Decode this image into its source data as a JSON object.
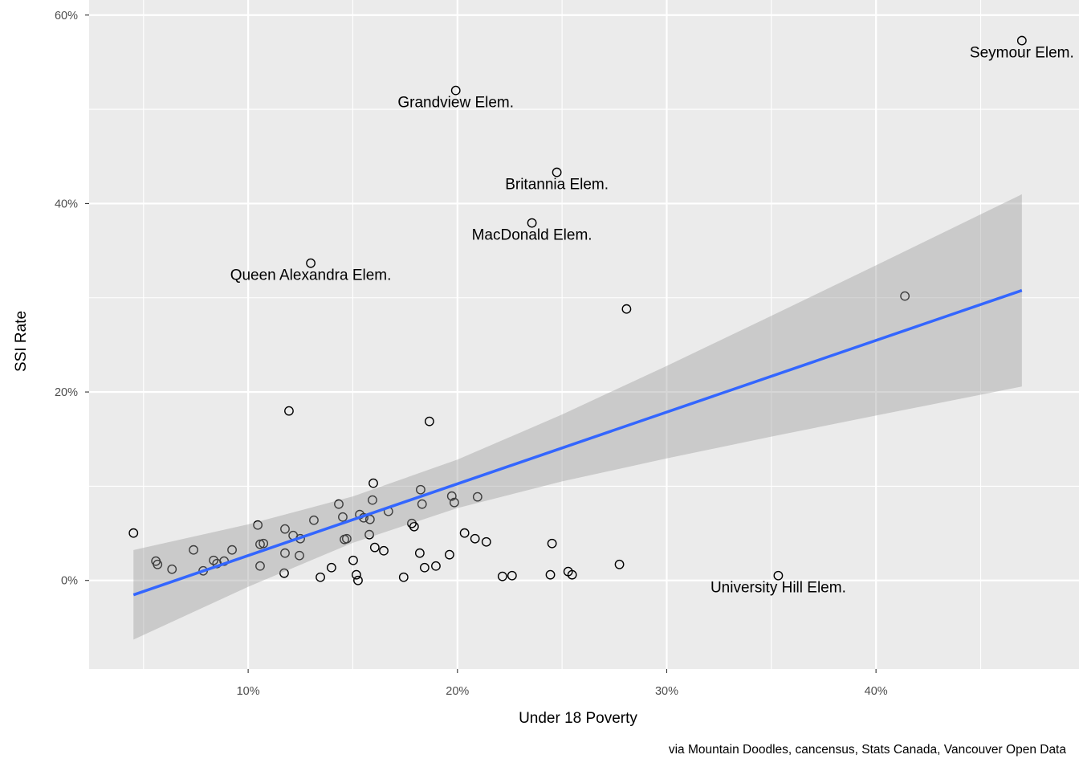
{
  "chart_data": {
    "type": "scatter",
    "title": "",
    "xlabel": "Under 18 Poverty",
    "ylabel": "SSI Rate",
    "caption": "via Mountain Doodles, cancensus, Stats Canada, Vancouver Open Data",
    "xlim": [
      2.4,
      49.7
    ],
    "ylim": [
      -9.4,
      61.6
    ],
    "x_ticks": [
      10,
      20,
      30,
      40
    ],
    "x_tick_labels": [
      "10%",
      "20%",
      "30%",
      "40%"
    ],
    "y_ticks": [
      0,
      20,
      40,
      60
    ],
    "y_tick_labels": [
      "0%",
      "20%",
      "40%",
      "60%"
    ],
    "grid": true,
    "colors": {
      "panel": "#EBEBEB",
      "line": "#3366FF",
      "band": "#999999",
      "grid": "#FFFFFF"
    },
    "points": [
      [
        4.52,
        5.03
      ],
      [
        5.59,
        2.05
      ],
      [
        5.67,
        1.7
      ],
      [
        6.36,
        1.19
      ],
      [
        7.39,
        3.24
      ],
      [
        7.85,
        1.02
      ],
      [
        8.35,
        2.13
      ],
      [
        8.51,
        1.79
      ],
      [
        8.85,
        2.05
      ],
      [
        9.23,
        3.24
      ],
      [
        10.46,
        5.88
      ],
      [
        10.57,
        3.84
      ],
      [
        10.73,
        3.92
      ],
      [
        10.57,
        1.53
      ],
      [
        11.76,
        5.46
      ],
      [
        11.76,
        2.9
      ],
      [
        11.72,
        0.77
      ],
      [
        11.95,
        17.99
      ],
      [
        12.15,
        4.77
      ],
      [
        12.45,
        2.64
      ],
      [
        12.49,
        4.43
      ],
      [
        12.99,
        33.67
      ],
      [
        13.14,
        6.39
      ],
      [
        13.45,
        0.34
      ],
      [
        13.98,
        1.36
      ],
      [
        14.33,
        8.1
      ],
      [
        14.52,
        6.73
      ],
      [
        14.6,
        4.35
      ],
      [
        14.71,
        4.43
      ],
      [
        15.02,
        2.13
      ],
      [
        15.17,
        0.6
      ],
      [
        15.25,
        0.0
      ],
      [
        15.33,
        6.99
      ],
      [
        15.52,
        6.65
      ],
      [
        15.79,
        4.86
      ],
      [
        15.82,
        6.48
      ],
      [
        15.94,
        8.53
      ],
      [
        15.98,
        10.32
      ],
      [
        16.05,
        3.5
      ],
      [
        16.48,
        3.15
      ],
      [
        16.7,
        7.33
      ],
      [
        17.43,
        0.34
      ],
      [
        17.82,
        6.05
      ],
      [
        17.93,
        5.71
      ],
      [
        18.2,
        2.9
      ],
      [
        18.24,
        9.63
      ],
      [
        18.31,
        8.1
      ],
      [
        18.43,
        1.36
      ],
      [
        18.66,
        16.88
      ],
      [
        18.97,
        1.53
      ],
      [
        19.62,
        2.73
      ],
      [
        19.73,
        8.95
      ],
      [
        19.85,
        8.27
      ],
      [
        19.92,
        52.0
      ],
      [
        20.34,
        5.03
      ],
      [
        20.84,
        4.43
      ],
      [
        20.96,
        8.87
      ],
      [
        21.38,
        4.09
      ],
      [
        22.15,
        0.43
      ],
      [
        22.61,
        0.51
      ],
      [
        23.56,
        37.94
      ],
      [
        24.44,
        0.6
      ],
      [
        24.52,
        3.92
      ],
      [
        24.75,
        43.31
      ],
      [
        25.29,
        0.94
      ],
      [
        25.48,
        0.6
      ],
      [
        27.74,
        1.7
      ],
      [
        28.08,
        28.81
      ],
      [
        35.33,
        0.51
      ],
      [
        41.38,
        30.18
      ],
      [
        46.97,
        57.29
      ]
    ],
    "labels": [
      {
        "text": "Seymour Elem.",
        "x": 46.97,
        "y": 57.29
      },
      {
        "text": "Grandview Elem.",
        "x": 19.92,
        "y": 52.0
      },
      {
        "text": "Britannia Elem.",
        "x": 24.75,
        "y": 43.31
      },
      {
        "text": "MacDonald Elem.",
        "x": 23.56,
        "y": 37.94
      },
      {
        "text": "Queen Alexandra Elem.",
        "x": 12.99,
        "y": 33.67
      },
      {
        "text": "University Hill Elem.",
        "x": 35.33,
        "y": 0.51
      }
    ],
    "fit": {
      "method": "lm",
      "x": [
        4.52,
        46.97
      ],
      "y": [
        -1.53,
        30.78
      ]
    },
    "band": {
      "x": [
        4.52,
        10,
        15,
        20,
        25,
        30,
        35,
        40,
        46.97
      ],
      "lower": [
        -6.28,
        -0.67,
        3.99,
        7.68,
        10.51,
        12.95,
        15.26,
        17.5,
        20.58
      ],
      "upper": [
        3.22,
        5.95,
        8.91,
        12.82,
        17.61,
        22.77,
        28.08,
        33.44,
        40.98
      ]
    }
  }
}
